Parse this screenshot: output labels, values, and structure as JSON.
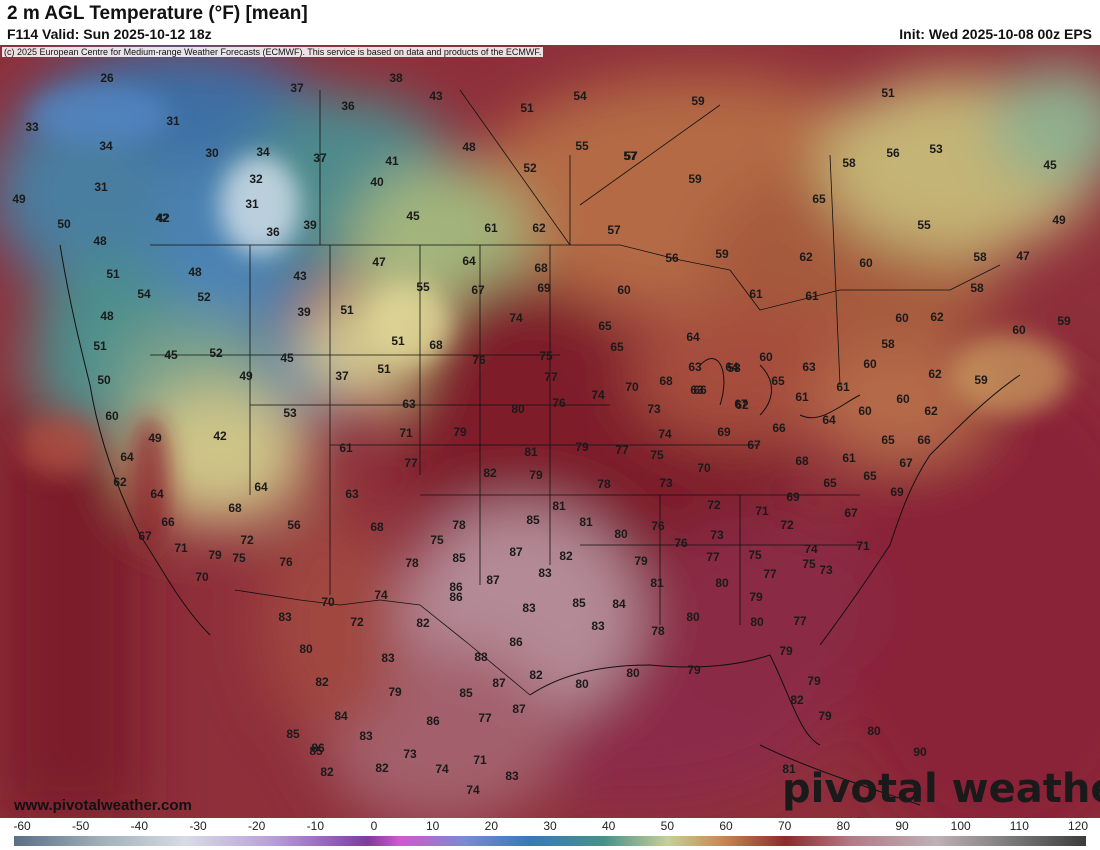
{
  "header": {
    "title": "2 m AGL Temperature (°F) [mean]",
    "valid": "F114 Valid: Sun 2025-10-12 18z",
    "init": "Init: Wed 2025-10-08 00z EPS"
  },
  "credit": "(c) 2025 European Centre for Medium-range Weather Forecasts (ECMWF). This service is based on data and products of the ECMWF.",
  "site_url": "www.pivotalweather.com",
  "brand": "pivotal weather",
  "colorbar": {
    "labels": [
      "-60",
      "-50",
      "-40",
      "-30",
      "-20",
      "-10",
      "0",
      "10",
      "20",
      "30",
      "40",
      "50",
      "60",
      "70",
      "80",
      "90",
      "100",
      "110",
      "120"
    ],
    "unit": "°F"
  },
  "map_values": [
    {
      "v": "26"
    },
    {
      "v": "38"
    },
    {
      "v": "37"
    },
    {
      "v": "43"
    },
    {
      "v": "36"
    },
    {
      "v": "51"
    },
    {
      "v": "54"
    },
    {
      "v": "59"
    },
    {
      "v": "57"
    },
    {
      "v": "51"
    },
    {
      "v": "33"
    },
    {
      "v": "31"
    },
    {
      "v": "34"
    },
    {
      "v": "30"
    },
    {
      "v": "34"
    },
    {
      "v": "37"
    },
    {
      "v": "41"
    },
    {
      "v": "48"
    },
    {
      "v": "55"
    },
    {
      "v": "57"
    },
    {
      "v": "56"
    },
    {
      "v": "53"
    },
    {
      "v": "45"
    },
    {
      "v": "31"
    },
    {
      "v": "32"
    },
    {
      "v": "40"
    },
    {
      "v": "52"
    },
    {
      "v": "59"
    },
    {
      "v": "58"
    },
    {
      "v": "49"
    },
    {
      "v": "42"
    },
    {
      "v": "31"
    },
    {
      "v": "45"
    },
    {
      "v": "65"
    },
    {
      "v": "50"
    },
    {
      "v": "36"
    },
    {
      "v": "39"
    },
    {
      "v": "61"
    },
    {
      "v": "62"
    },
    {
      "v": "57"
    },
    {
      "v": "55"
    },
    {
      "v": "49"
    },
    {
      "v": "48"
    },
    {
      "v": "59"
    },
    {
      "v": "62"
    },
    {
      "v": "60"
    },
    {
      "v": "58"
    },
    {
      "v": "47"
    },
    {
      "v": "51"
    },
    {
      "v": "48"
    },
    {
      "v": "43"
    },
    {
      "v": "47"
    },
    {
      "v": "64"
    },
    {
      "v": "68"
    },
    {
      "v": "56"
    },
    {
      "v": "54"
    },
    {
      "v": "42"
    },
    {
      "v": "55"
    },
    {
      "v": "67"
    },
    {
      "v": "69"
    },
    {
      "v": "60"
    },
    {
      "v": "61"
    },
    {
      "v": "61"
    },
    {
      "v": "58"
    },
    {
      "v": "48"
    },
    {
      "v": "52"
    },
    {
      "v": "39"
    },
    {
      "v": "51"
    },
    {
      "v": "74"
    },
    {
      "v": "65"
    },
    {
      "v": "60"
    },
    {
      "v": "62"
    },
    {
      "v": "60"
    },
    {
      "v": "59"
    },
    {
      "v": "51"
    },
    {
      "v": "45"
    },
    {
      "v": "52"
    },
    {
      "v": "45"
    },
    {
      "v": "51"
    },
    {
      "v": "68"
    },
    {
      "v": "76"
    },
    {
      "v": "75"
    },
    {
      "v": "65"
    },
    {
      "v": "64"
    },
    {
      "v": "63"
    },
    {
      "v": "58"
    },
    {
      "v": "60"
    },
    {
      "v": "58"
    },
    {
      "v": "50"
    },
    {
      "v": "49"
    },
    {
      "v": "37"
    },
    {
      "v": "51"
    },
    {
      "v": "77"
    },
    {
      "v": "70"
    },
    {
      "v": "68"
    },
    {
      "v": "63"
    },
    {
      "v": "64"
    },
    {
      "v": "65"
    },
    {
      "v": "63"
    },
    {
      "v": "61"
    },
    {
      "v": "60"
    },
    {
      "v": "62"
    },
    {
      "v": "59"
    },
    {
      "v": "60"
    },
    {
      "v": "53"
    },
    {
      "v": "63"
    },
    {
      "v": "80"
    },
    {
      "v": "76"
    },
    {
      "v": "74"
    },
    {
      "v": "66"
    },
    {
      "v": "62"
    },
    {
      "v": "61"
    },
    {
      "v": "60"
    },
    {
      "v": "60"
    },
    {
      "v": "49"
    },
    {
      "v": "42"
    },
    {
      "v": "71"
    },
    {
      "v": "79"
    },
    {
      "v": "73"
    },
    {
      "v": "67"
    },
    {
      "v": "64"
    },
    {
      "v": "62"
    },
    {
      "v": "64"
    },
    {
      "v": "61"
    },
    {
      "v": "81"
    },
    {
      "v": "79"
    },
    {
      "v": "77"
    },
    {
      "v": "74"
    },
    {
      "v": "69"
    },
    {
      "v": "66"
    },
    {
      "v": "65"
    },
    {
      "v": "66"
    },
    {
      "v": "62"
    },
    {
      "v": "64"
    },
    {
      "v": "77"
    },
    {
      "v": "82"
    },
    {
      "v": "79"
    },
    {
      "v": "75"
    },
    {
      "v": "70"
    },
    {
      "v": "67"
    },
    {
      "v": "68"
    },
    {
      "v": "61"
    },
    {
      "v": "67"
    },
    {
      "v": "64"
    },
    {
      "v": "63"
    },
    {
      "v": "78"
    },
    {
      "v": "73"
    },
    {
      "v": "65"
    },
    {
      "v": "65"
    },
    {
      "v": "69"
    },
    {
      "v": "68"
    },
    {
      "v": "56"
    },
    {
      "v": "81"
    },
    {
      "v": "72"
    },
    {
      "v": "71"
    },
    {
      "v": "69"
    },
    {
      "v": "66"
    },
    {
      "v": "68"
    },
    {
      "v": "78"
    },
    {
      "v": "85"
    },
    {
      "v": "81"
    },
    {
      "v": "76"
    },
    {
      "v": "80"
    },
    {
      "v": "72"
    },
    {
      "v": "67"
    },
    {
      "v": "67"
    },
    {
      "v": "72"
    },
    {
      "v": "75"
    },
    {
      "v": "73"
    },
    {
      "v": "76"
    },
    {
      "v": "75"
    },
    {
      "v": "74"
    },
    {
      "v": "71"
    },
    {
      "v": "71"
    },
    {
      "v": "76"
    },
    {
      "v": "85"
    },
    {
      "v": "87"
    },
    {
      "v": "82"
    },
    {
      "v": "79"
    },
    {
      "v": "77"
    },
    {
      "v": "73"
    },
    {
      "v": "70"
    },
    {
      "v": "79"
    },
    {
      "v": "75"
    },
    {
      "v": "78"
    },
    {
      "v": "86"
    },
    {
      "v": "87"
    },
    {
      "v": "83"
    },
    {
      "v": "81"
    },
    {
      "v": "80"
    },
    {
      "v": "77"
    },
    {
      "v": "75"
    },
    {
      "v": "83"
    },
    {
      "v": "70"
    },
    {
      "v": "74"
    },
    {
      "v": "86"
    },
    {
      "v": "83"
    },
    {
      "v": "85"
    },
    {
      "v": "84"
    },
    {
      "v": "79"
    },
    {
      "v": "72"
    },
    {
      "v": "82"
    },
    {
      "v": "86"
    },
    {
      "v": "83"
    },
    {
      "v": "78"
    },
    {
      "v": "80"
    },
    {
      "v": "80"
    },
    {
      "v": "77"
    },
    {
      "v": "80"
    },
    {
      "v": "83"
    },
    {
      "v": "88"
    },
    {
      "v": "80"
    },
    {
      "v": "79"
    },
    {
      "v": "79"
    },
    {
      "v": "79"
    },
    {
      "v": "82"
    },
    {
      "v": "79"
    },
    {
      "v": "85"
    },
    {
      "v": "87"
    },
    {
      "v": "82"
    },
    {
      "v": "80"
    },
    {
      "v": "84"
    },
    {
      "v": "86"
    },
    {
      "v": "77"
    },
    {
      "v": "87"
    },
    {
      "v": "82"
    },
    {
      "v": "79"
    },
    {
      "v": "85"
    },
    {
      "v": "85"
    },
    {
      "v": "83"
    },
    {
      "v": "80"
    },
    {
      "v": "86"
    },
    {
      "v": "73"
    },
    {
      "v": "71"
    },
    {
      "v": "90"
    },
    {
      "v": "82"
    },
    {
      "v": "82"
    },
    {
      "v": "74"
    },
    {
      "v": "83"
    },
    {
      "v": "81"
    },
    {
      "v": "74"
    }
  ]
}
